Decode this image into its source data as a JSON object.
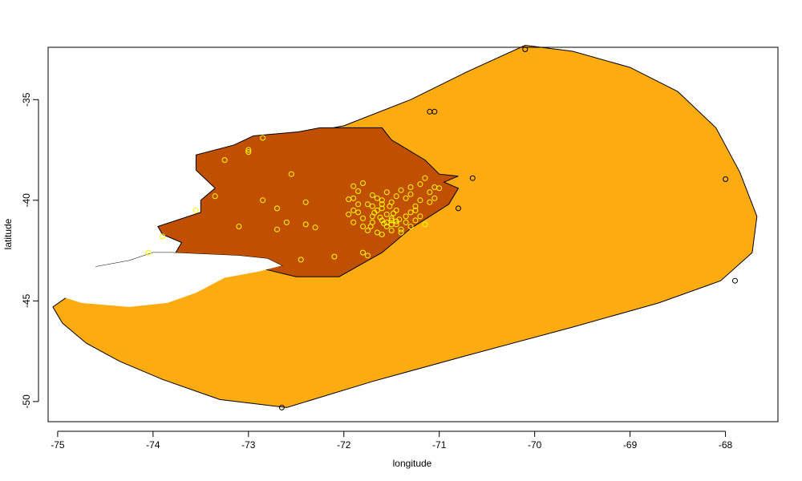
{
  "chart_data": {
    "type": "scatter",
    "title": "",
    "xlabel": "longitude",
    "ylabel": "latitude",
    "xlim": [
      -75.1,
      -67.45
    ],
    "ylim": [
      -51.0,
      -32.4
    ],
    "x_ticks": [
      -75,
      -74,
      -73,
      -72,
      -71,
      -70,
      -69,
      -68
    ],
    "y_ticks": [
      -35,
      -40,
      -45,
      -50
    ],
    "x_tick_labels": [
      "-75",
      "-74",
      "-73",
      "-72",
      "-71",
      "-70",
      "-69",
      "-68"
    ],
    "y_tick_labels": [
      "-35",
      "-40",
      "-45",
      "-50"
    ],
    "grid": false,
    "legend": "none",
    "colors": {
      "hull_fill": "#FCAC10",
      "region_fill": "#C05000",
      "outline": "#000000",
      "inside_points": "#FFFF00",
      "outside_points": "#000000",
      "coast_gap": "#FFFFFF"
    },
    "hull_polygon": [
      [
        -72.0,
        -36.3
      ],
      [
        -71.3,
        -35.0
      ],
      [
        -70.7,
        -33.6
      ],
      [
        -70.1,
        -32.3
      ],
      [
        -69.6,
        -32.6
      ],
      [
        -69.0,
        -33.4
      ],
      [
        -68.5,
        -34.6
      ],
      [
        -68.1,
        -36.4
      ],
      [
        -67.85,
        -38.6
      ],
      [
        -67.67,
        -40.8
      ],
      [
        -67.72,
        -42.6
      ],
      [
        -68.05,
        -44.0
      ],
      [
        -68.7,
        -45.1
      ],
      [
        -69.6,
        -46.3
      ],
      [
        -70.7,
        -47.7
      ],
      [
        -71.7,
        -49.0
      ],
      [
        -72.6,
        -50.3
      ],
      [
        -73.3,
        -49.9
      ],
      [
        -73.9,
        -48.9
      ],
      [
        -74.35,
        -48.0
      ],
      [
        -74.7,
        -47.1
      ],
      [
        -74.95,
        -46.1
      ],
      [
        -75.05,
        -45.3
      ],
      [
        -74.9,
        -44.8
      ],
      [
        -74.4,
        -44.0
      ],
      [
        -73.7,
        -42.5
      ],
      [
        -73.1,
        -39.3
      ],
      [
        -72.7,
        -37.4
      ],
      [
        -72.45,
        -36.7
      ],
      [
        -72.0,
        -36.3
      ]
    ],
    "region_polygon": [
      [
        -72.48,
        -36.6
      ],
      [
        -72.25,
        -36.4
      ],
      [
        -71.6,
        -36.4
      ],
      [
        -71.5,
        -37.0
      ],
      [
        -71.15,
        -38.0
      ],
      [
        -71.0,
        -38.7
      ],
      [
        -70.8,
        -38.8
      ],
      [
        -70.95,
        -39.1
      ],
      [
        -70.8,
        -39.4
      ],
      [
        -70.9,
        -40.2
      ],
      [
        -71.1,
        -40.8
      ],
      [
        -71.3,
        -41.4
      ],
      [
        -71.45,
        -42.0
      ],
      [
        -71.6,
        -42.6
      ],
      [
        -71.75,
        -43.0
      ],
      [
        -72.05,
        -43.8
      ],
      [
        -72.5,
        -43.8
      ],
      [
        -72.85,
        -43.4
      ],
      [
        -72.65,
        -43.25
      ],
      [
        -72.8,
        -42.9
      ],
      [
        -73.1,
        -42.75
      ],
      [
        -73.8,
        -42.6
      ],
      [
        -74.0,
        -42.6
      ],
      [
        -74.25,
        -43.0
      ],
      [
        -74.6,
        -43.3
      ],
      [
        -74.1,
        -43.35
      ],
      [
        -73.8,
        -42.9
      ],
      [
        -73.7,
        -42.1
      ],
      [
        -73.9,
        -41.7
      ],
      [
        -73.95,
        -41.3
      ],
      [
        -73.5,
        -40.6
      ],
      [
        -73.5,
        -40.0
      ],
      [
        -73.35,
        -39.4
      ],
      [
        -73.55,
        -38.5
      ],
      [
        -73.55,
        -37.75
      ],
      [
        -73.15,
        -37.25
      ],
      [
        -72.95,
        -36.8
      ],
      [
        -72.48,
        -36.6
      ]
    ],
    "gap_polygon": [
      [
        -73.8,
        -42.6
      ],
      [
        -73.1,
        -42.75
      ],
      [
        -72.8,
        -42.9
      ],
      [
        -72.65,
        -43.25
      ],
      [
        -72.9,
        -43.55
      ],
      [
        -73.25,
        -43.85
      ],
      [
        -73.55,
        -44.6
      ],
      [
        -73.85,
        -45.1
      ],
      [
        -74.25,
        -45.3
      ],
      [
        -74.75,
        -45.1
      ],
      [
        -75.02,
        -44.7
      ],
      [
        -74.9,
        -44.3
      ],
      [
        -74.5,
        -43.9
      ],
      [
        -74.6,
        -43.3
      ],
      [
        -74.25,
        -43.0
      ],
      [
        -74.0,
        -42.6
      ],
      [
        -73.8,
        -42.6
      ]
    ],
    "series": [
      {
        "name": "",
        "color": "#FFFF00",
        "points": [
          [
            -72.85,
            -36.9
          ],
          [
            -73.0,
            -37.5
          ],
          [
            -73.0,
            -37.6
          ],
          [
            -73.25,
            -38.0
          ],
          [
            -72.55,
            -38.7
          ],
          [
            -72.85,
            -40.0
          ],
          [
            -72.7,
            -40.4
          ],
          [
            -72.4,
            -40.1
          ],
          [
            -73.35,
            -39.8
          ],
          [
            -73.55,
            -40.5
          ],
          [
            -73.1,
            -41.3
          ],
          [
            -72.6,
            -41.1
          ],
          [
            -72.4,
            -41.2
          ],
          [
            -72.3,
            -41.35
          ],
          [
            -72.7,
            -41.45
          ],
          [
            -73.9,
            -41.8
          ],
          [
            -74.05,
            -42.6
          ],
          [
            -72.45,
            -42.95
          ],
          [
            -72.1,
            -42.8
          ],
          [
            -71.8,
            -42.6
          ],
          [
            -71.75,
            -42.75
          ],
          [
            -71.9,
            -39.3
          ],
          [
            -71.9,
            -39.9
          ],
          [
            -71.8,
            -39.15
          ],
          [
            -71.85,
            -40.2
          ],
          [
            -71.7,
            -40.3
          ],
          [
            -71.65,
            -40.5
          ],
          [
            -71.6,
            -40.0
          ],
          [
            -71.55,
            -40.7
          ],
          [
            -71.5,
            -40.9
          ],
          [
            -71.45,
            -41.2
          ],
          [
            -71.6,
            -41.0
          ],
          [
            -71.7,
            -40.8
          ],
          [
            -71.8,
            -40.9
          ],
          [
            -71.9,
            -41.1
          ],
          [
            -71.55,
            -41.3
          ],
          [
            -71.4,
            -41.45
          ],
          [
            -71.35,
            -41.1
          ],
          [
            -71.3,
            -40.6
          ],
          [
            -71.25,
            -40.3
          ],
          [
            -71.2,
            -40.0
          ],
          [
            -71.35,
            -39.9
          ],
          [
            -71.45,
            -39.8
          ],
          [
            -71.55,
            -39.6
          ],
          [
            -71.4,
            -39.5
          ],
          [
            -71.3,
            -39.35
          ],
          [
            -71.2,
            -39.2
          ],
          [
            -71.15,
            -38.9
          ],
          [
            -71.05,
            -39.35
          ],
          [
            -71.0,
            -39.4
          ],
          [
            -71.65,
            -41.6
          ],
          [
            -71.75,
            -41.5
          ],
          [
            -71.6,
            -41.7
          ],
          [
            -71.5,
            -41.5
          ],
          [
            -71.7,
            -41.1
          ],
          [
            -71.85,
            -40.6
          ],
          [
            -71.95,
            -40.7
          ],
          [
            -71.6,
            -40.4
          ],
          [
            -71.5,
            -40.1
          ],
          [
            -71.45,
            -40.5
          ],
          [
            -71.35,
            -40.8
          ],
          [
            -71.25,
            -41.0
          ],
          [
            -71.2,
            -40.8
          ],
          [
            -71.65,
            -39.9
          ],
          [
            -71.7,
            -39.75
          ],
          [
            -71.3,
            -39.7
          ],
          [
            -71.1,
            -39.6
          ],
          [
            -71.5,
            -41.0
          ],
          [
            -71.45,
            -41.05
          ],
          [
            -71.55,
            -41.1
          ],
          [
            -71.58,
            -41.15
          ],
          [
            -71.5,
            -41.2
          ],
          [
            -71.42,
            -40.95
          ],
          [
            -71.62,
            -40.85
          ],
          [
            -71.75,
            -40.2
          ],
          [
            -71.3,
            -41.3
          ],
          [
            -71.15,
            -41.2
          ],
          [
            -71.95,
            -39.95
          ],
          [
            -71.85,
            -39.55
          ],
          [
            -71.4,
            -41.6
          ],
          [
            -71.25,
            -40.5
          ],
          [
            -71.1,
            -40.1
          ],
          [
            -71.05,
            -39.9
          ],
          [
            -71.6,
            -40.2
          ],
          [
            -71.68,
            -40.62
          ],
          [
            -71.52,
            -40.3
          ],
          [
            -71.48,
            -40.65
          ],
          [
            -71.8,
            -41.3
          ],
          [
            -71.9,
            -40.5
          ],
          [
            -71.72,
            -41.3
          ]
        ]
      },
      {
        "name": "",
        "color": "#000000",
        "points": [
          [
            -70.1,
            -32.5
          ],
          [
            -71.05,
            -35.6
          ],
          [
            -71.1,
            -35.6
          ],
          [
            -70.65,
            -38.9
          ],
          [
            -70.8,
            -40.4
          ],
          [
            -68.0,
            -38.95
          ],
          [
            -67.9,
            -44.0
          ],
          [
            -72.65,
            -50.3
          ]
        ]
      }
    ]
  }
}
